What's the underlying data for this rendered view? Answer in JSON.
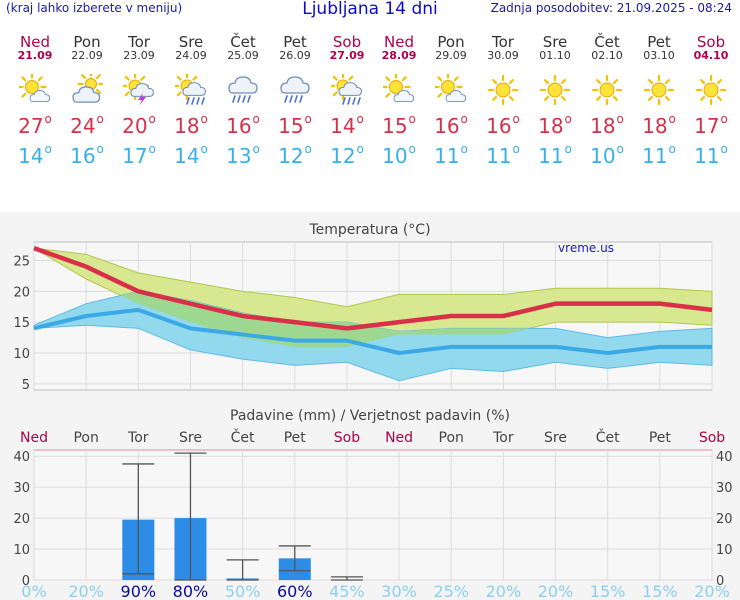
{
  "header": {
    "hint": "(kraj lahko izberete v meniju)",
    "title": "Ljubljana 14 dni",
    "updated": "Zadnja posodobitev: 21.09.2025 - 08:24"
  },
  "days": [
    {
      "name": "Ned",
      "date": "21.09",
      "weekend": true,
      "icon": "sun-cloud-icon",
      "tmax": "27",
      "tmin": "14"
    },
    {
      "name": "Pon",
      "date": "22.09",
      "weekend": false,
      "icon": "cloud-sun-icon",
      "tmax": "24",
      "tmin": "16"
    },
    {
      "name": "Tor",
      "date": "23.09",
      "weekend": false,
      "icon": "thunderstorm-icon",
      "tmax": "20",
      "tmin": "17"
    },
    {
      "name": "Sre",
      "date": "24.09",
      "weekend": false,
      "icon": "sun-rain-icon",
      "tmax": "18",
      "tmin": "14"
    },
    {
      "name": "Čet",
      "date": "25.09",
      "weekend": false,
      "icon": "rain-cloud-icon",
      "tmax": "16",
      "tmin": "13"
    },
    {
      "name": "Pet",
      "date": "26.09",
      "weekend": false,
      "icon": "rain-cloud-icon",
      "tmax": "15",
      "tmin": "12"
    },
    {
      "name": "Sob",
      "date": "27.09",
      "weekend": true,
      "icon": "sun-rain-icon",
      "tmax": "14",
      "tmin": "12"
    },
    {
      "name": "Ned",
      "date": "28.09",
      "weekend": true,
      "icon": "sun-cloud-icon",
      "tmax": "15",
      "tmin": "10"
    },
    {
      "name": "Pon",
      "date": "29.09",
      "weekend": false,
      "icon": "sun-cloud-icon",
      "tmax": "16",
      "tmin": "11"
    },
    {
      "name": "Tor",
      "date": "30.09",
      "weekend": false,
      "icon": "sun-icon",
      "tmax": "16",
      "tmin": "11"
    },
    {
      "name": "Sre",
      "date": "01.10",
      "weekend": false,
      "icon": "sun-icon",
      "tmax": "18",
      "tmin": "11"
    },
    {
      "name": "Čet",
      "date": "02.10",
      "weekend": false,
      "icon": "sun-icon",
      "tmax": "18",
      "tmin": "10"
    },
    {
      "name": "Pet",
      "date": "03.10",
      "weekend": false,
      "icon": "sun-icon",
      "tmax": "18",
      "tmin": "11"
    },
    {
      "name": "Sob",
      "date": "04.10",
      "weekend": true,
      "icon": "sun-icon",
      "tmax": "17",
      "tmin": "11"
    }
  ],
  "colors": {
    "max_line": "#d9304a",
    "min_line": "#3aa9e6",
    "max_band": "#d8e890",
    "min_band": "#8ed8ee",
    "overlap_band": "#9ed890",
    "bar": "#2c8ce6",
    "weekend": "#b0004a",
    "prob_high": "#0a0aa0",
    "prob_low": "#8ccfef"
  },
  "chart_data": [
    {
      "type": "line",
      "title": "Temperatura (°C)",
      "watermark": "vreme.us",
      "ylim": [
        4,
        28
      ],
      "yticks": [
        "25",
        "20",
        "15",
        "10",
        "5"
      ],
      "categories": [
        "21.09",
        "22.09",
        "23.09",
        "24.09",
        "25.09",
        "26.09",
        "27.09",
        "28.09",
        "29.09",
        "30.09",
        "01.10",
        "02.10",
        "03.10",
        "04.10"
      ],
      "series": [
        {
          "name": "max",
          "values": [
            27,
            24,
            20,
            18,
            16,
            15,
            14,
            15,
            16,
            16,
            18,
            18,
            18,
            17
          ]
        },
        {
          "name": "max_range_high",
          "values": [
            27,
            26,
            23,
            21.5,
            20,
            19,
            17.5,
            19.5,
            19.5,
            19.5,
            20.5,
            20.5,
            20.5,
            20
          ]
        },
        {
          "name": "max_range_low",
          "values": [
            27,
            22,
            18,
            15,
            12.5,
            11,
            11,
            13,
            13,
            13,
            15,
            15,
            15,
            14.5
          ]
        },
        {
          "name": "min",
          "values": [
            14,
            16,
            17,
            14,
            13,
            12,
            12,
            10,
            11,
            11,
            11,
            10,
            11,
            11
          ]
        },
        {
          "name": "min_range_high",
          "values": [
            14.5,
            18,
            20,
            18.5,
            16.5,
            15,
            15,
            13.5,
            14,
            14,
            14,
            12.5,
            13.5,
            14
          ]
        },
        {
          "name": "min_range_low",
          "values": [
            14,
            14.5,
            14,
            10.5,
            9,
            8,
            8.5,
            5.5,
            7.5,
            7,
            8.5,
            7.5,
            8.5,
            8
          ]
        }
      ]
    },
    {
      "type": "bar",
      "title": "Padavine (mm) / Verjetnost padavin (%)",
      "ylim": [
        0,
        42
      ],
      "yticks": [
        "40",
        "30",
        "20",
        "10",
        "0"
      ],
      "day_labels": [
        "Ned",
        "Pon",
        "Tor",
        "Sre",
        "Čet",
        "Pet",
        "Sob",
        "Ned",
        "Pon",
        "Tor",
        "Sre",
        "Čet",
        "Pet",
        "Sob"
      ],
      "weekend": [
        true,
        false,
        false,
        false,
        false,
        false,
        true,
        true,
        false,
        false,
        false,
        false,
        false,
        true
      ],
      "values": [
        0,
        0,
        19.5,
        20,
        0.5,
        7,
        0,
        0,
        0,
        0,
        0,
        0,
        0,
        0
      ],
      "err_low": [
        0,
        0,
        2,
        0,
        0,
        3,
        0,
        0,
        0,
        0,
        0,
        0,
        0,
        0
      ],
      "err_high": [
        0,
        0,
        37.5,
        41,
        6.5,
        11,
        1,
        0,
        0,
        0,
        0,
        0,
        0,
        0
      ],
      "probability": [
        "0%",
        "20%",
        "90%",
        "80%",
        "50%",
        "60%",
        "45%",
        "30%",
        "25%",
        "20%",
        "20%",
        "15%",
        "15%",
        "20%"
      ],
      "probability_values": [
        0,
        20,
        90,
        80,
        50,
        60,
        45,
        30,
        25,
        20,
        20,
        15,
        15,
        20
      ]
    }
  ]
}
